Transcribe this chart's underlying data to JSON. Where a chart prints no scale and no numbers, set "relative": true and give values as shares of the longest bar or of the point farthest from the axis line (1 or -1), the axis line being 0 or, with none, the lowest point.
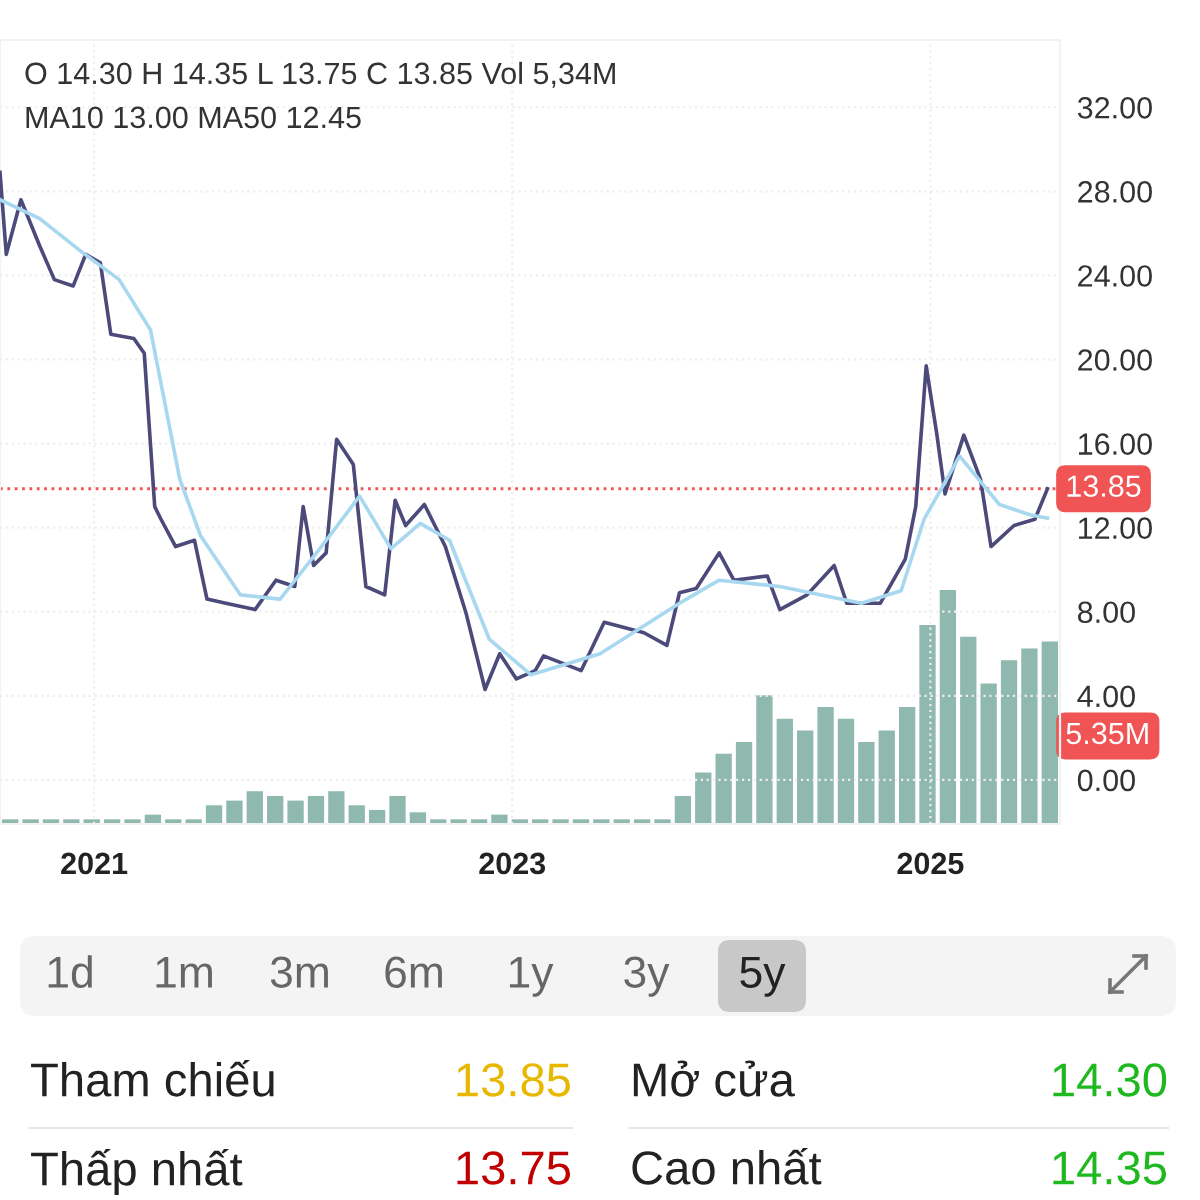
{
  "chart_data": [
    {
      "type": "line",
      "annotations": [
        "O 14.30 H 14.35 L 13.75 C 13.85 Vol 5,34M",
        "MA10 13.00 MA50 12.45"
      ],
      "series": [
        {
          "color": "#4b4a7a",
          "x": [
            2020.55,
            2020.58,
            2020.65,
            2020.74,
            2020.81,
            2020.9,
            2020.96,
            2021.03,
            2021.08,
            2021.19,
            2021.24,
            2021.29,
            2021.32,
            2021.39,
            2021.48,
            2021.54,
            2021.63,
            2021.77,
            2021.87,
            2021.96,
            2022.0,
            2022.05,
            2022.11,
            2022.16,
            2022.24,
            2022.3,
            2022.39,
            2022.44,
            2022.49,
            2022.58,
            2022.68,
            2022.78,
            2022.87,
            2022.94,
            2023.02,
            2023.11,
            2023.15,
            2023.33,
            2023.44,
            2023.63,
            2023.74,
            2023.8,
            2023.88,
            2023.99,
            2024.06,
            2024.22,
            2024.28,
            2024.41,
            2024.54,
            2024.6,
            2024.76,
            2024.88,
            2024.93,
            2024.98,
            2025.0,
            2025.03,
            2025.07,
            2025.16,
            2025.24,
            2025.29,
            2025.4,
            2025.5,
            2025.56
          ],
          "values": [
            28.9,
            25.0,
            27.6,
            25.4,
            23.8,
            23.5,
            25.0,
            24.6,
            21.2,
            21.0,
            20.3,
            13.0,
            12.4,
            11.1,
            11.4,
            8.6,
            8.4,
            8.1,
            9.5,
            9.2,
            13.0,
            10.2,
            10.8,
            16.2,
            15.0,
            9.2,
            8.8,
            13.3,
            12.1,
            13.1,
            11.1,
            7.9,
            4.3,
            6.0,
            4.8,
            5.2,
            5.9,
            5.2,
            7.5,
            7.0,
            6.4,
            8.9,
            9.1,
            10.8,
            9.5,
            9.7,
            8.1,
            8.8,
            10.2,
            8.4,
            8.4,
            10.5,
            13.0,
            19.7,
            18.4,
            16.5,
            13.6,
            16.4,
            14.3,
            11.1,
            12.1,
            12.4,
            13.85
          ]
        },
        {
          "color": "#a8d8f0",
          "x": [
            2020.55,
            2020.74,
            2020.93,
            2021.12,
            2021.27,
            2021.41,
            2021.51,
            2021.7,
            2021.89,
            2022.08,
            2022.27,
            2022.42,
            2022.56,
            2022.7,
            2022.89,
            2023.09,
            2023.42,
            2023.8,
            2023.99,
            2024.28,
            2024.67,
            2024.86,
            2024.97,
            2025.14,
            2025.33,
            2025.48,
            2025.56
          ],
          "values": [
            27.6,
            26.7,
            25.2,
            23.8,
            21.4,
            14.3,
            11.6,
            8.8,
            8.6,
            11.0,
            13.5,
            11.0,
            12.2,
            11.4,
            6.7,
            5.0,
            6.0,
            8.4,
            9.5,
            9.2,
            8.4,
            9.0,
            12.4,
            15.4,
            13.1,
            12.6,
            12.45
          ]
        }
      ],
      "xlim": [
        2020.55,
        2025.62
      ],
      "xticks": [
        2021,
        2023,
        2025
      ],
      "ylim": [
        -2.1,
        35.2
      ],
      "yticks": [
        {
          "value": 0,
          "label": "0.00"
        },
        {
          "value": 4,
          "label": "4.00"
        },
        {
          "value": 8,
          "label": "8.00"
        },
        {
          "value": 12,
          "label": "12.00"
        },
        {
          "value": 16,
          "label": "16.00"
        },
        {
          "value": 20,
          "label": "20.00"
        },
        {
          "value": 24,
          "label": "24.00"
        },
        {
          "value": 28,
          "label": "28.00"
        },
        {
          "value": 32,
          "label": "32.00"
        }
      ],
      "ref_lines": [
        {
          "axis": "y",
          "value": 13.85,
          "label": "13.85",
          "color": "#f05454",
          "line_style": "dotted"
        }
      ],
      "grid": true
    },
    {
      "type": "bar",
      "relative": true,
      "color": "#8fb8ae",
      "categories": [
        null,
        null,
        null,
        null,
        null,
        null,
        null,
        null,
        null,
        null,
        null,
        null,
        null,
        null,
        null,
        null,
        null,
        null,
        null,
        null,
        null,
        null,
        null,
        null,
        null,
        null,
        null,
        null,
        null,
        null,
        null,
        null,
        null,
        null,
        null,
        null,
        null,
        null,
        null,
        null,
        null,
        null,
        null,
        null,
        null,
        null,
        null,
        null,
        null,
        null,
        null,
        null
      ],
      "values": [
        0.02,
        0.02,
        0.02,
        0.02,
        0.02,
        0.02,
        0.02,
        0.04,
        0.02,
        0.02,
        0.08,
        0.1,
        0.14,
        0.12,
        0.1,
        0.12,
        0.14,
        0.08,
        0.06,
        0.12,
        0.05,
        0.02,
        0.02,
        0.02,
        0.04,
        0.02,
        0.02,
        0.02,
        0.02,
        0.02,
        0.02,
        0.02,
        0.02,
        0.12,
        0.22,
        0.3,
        0.35,
        0.55,
        0.45,
        0.4,
        0.5,
        0.45,
        0.35,
        0.4,
        0.5,
        0.85,
        1.0,
        0.8,
        0.6,
        0.7,
        0.75,
        0.78
      ],
      "annotations": [
        "5.35M"
      ]
    },
    {
      "type": "other",
      "categories": [
        "1d",
        "1m",
        "3m",
        "6m",
        "1y",
        "3y",
        "5y"
      ],
      "annotations": [
        "Tham chiếu",
        "13.85",
        "Mở cửa",
        "14.30",
        "Thấp nhất",
        "13.75",
        "Cao nhất",
        "14.35"
      ]
    }
  ]
}
